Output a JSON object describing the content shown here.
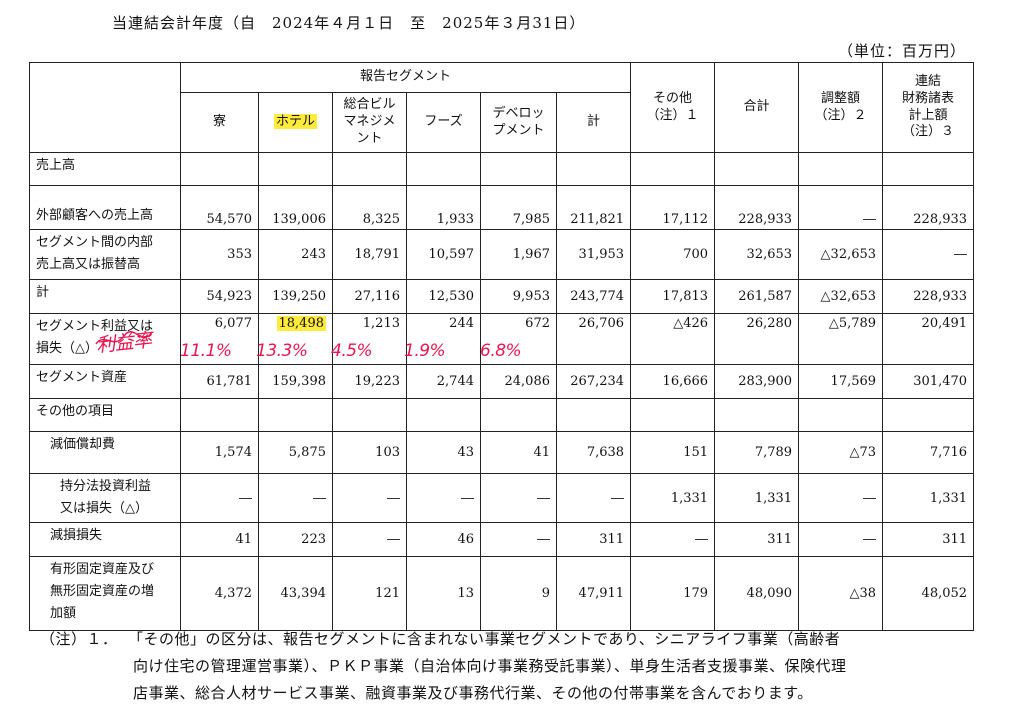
{
  "heading": "当連結会計年度（自　2024年４月１日　至　2025年３月31日）",
  "unit": "（単位：百万円）",
  "header": {
    "group": "報告セグメント",
    "segments": [
      "寮",
      "ホテル",
      "総合ビル\nマネジメ\nント",
      "フーズ",
      "デベロッ\nプメント",
      "計"
    ],
    "other": "その他\n（注）１",
    "total": "合計",
    "adjust": "調整額\n（注）２",
    "consolidated": "連結\n財務諸表\n計上額\n（注）３"
  },
  "rows": [
    {
      "label": "売上高",
      "values": [
        "",
        "",
        "",
        "",
        "",
        "",
        "",
        "",
        "",
        ""
      ]
    },
    {
      "label": "外部顧客への売上高",
      "values": [
        "54,570",
        "139,006",
        "8,325",
        "1,933",
        "7,985",
        "211,821",
        "17,112",
        "228,933",
        "―",
        "228,933"
      ]
    },
    {
      "label": "セグメント間の内部\n売上高又は振替高",
      "values": [
        "353",
        "243",
        "18,791",
        "10,597",
        "1,967",
        "31,953",
        "700",
        "32,653",
        "△32,653",
        "―"
      ]
    },
    {
      "label": "計",
      "values": [
        "54,923",
        "139,250",
        "27,116",
        "12,530",
        "9,953",
        "243,774",
        "17,813",
        "261,587",
        "△32,653",
        "228,933"
      ]
    },
    {
      "label": "セグメント利益又は\n損失（△）",
      "values": [
        "6,077",
        "18,498",
        "1,213",
        "244",
        "672",
        "26,706",
        "△426",
        "26,280",
        "△5,789",
        "20,491"
      ]
    },
    {
      "label": "セグメント資産",
      "values": [
        "61,781",
        "159,398",
        "19,223",
        "2,744",
        "24,086",
        "267,234",
        "16,666",
        "283,900",
        "17,569",
        "301,470"
      ]
    },
    {
      "label": "その他の項目",
      "values": [
        "",
        "",
        "",
        "",
        "",
        "",
        "",
        "",
        "",
        ""
      ]
    },
    {
      "label": "減価償却費",
      "values": [
        "1,574",
        "5,875",
        "103",
        "43",
        "41",
        "7,638",
        "151",
        "7,789",
        "△73",
        "7,716"
      ]
    },
    {
      "label": "持分法投資利益\n又は損失（△）",
      "values": [
        "―",
        "―",
        "―",
        "―",
        "―",
        "―",
        "1,331",
        "1,331",
        "―",
        "1,331"
      ]
    },
    {
      "label": "減損損失",
      "values": [
        "41",
        "223",
        "―",
        "46",
        "―",
        "311",
        "―",
        "311",
        "―",
        "311"
      ]
    },
    {
      "label": "有形固定資産及び\n無形固定資産の増\n加額",
      "values": [
        "4,372",
        "43,394",
        "121",
        "13",
        "9",
        "47,911",
        "179",
        "48,090",
        "△38",
        "48,052"
      ]
    }
  ],
  "annotations": {
    "handwritten_label": "利益率",
    "margins": [
      "11.1%",
      "13.3%",
      "4.5%",
      "1.9%",
      "6.8%"
    ],
    "highlight_color": "#ffeb3b",
    "ink_color": "#e8174f"
  },
  "note": {
    "mark": "（注）１．",
    "line1": "「その他」の区分は、報告セグメントに含まれない事業セグメントであり、シニアライフ事業（高齢者",
    "line2": "向け住宅の管理運営事業）、ＰＫＰ事業（自治体向け事業務受託事業）、単身生活者支援事業、保険代理",
    "line3": "店事業、総合人材サービス事業、融資事業及び事務代行業、その他の付帯事業を含んでおります。"
  }
}
